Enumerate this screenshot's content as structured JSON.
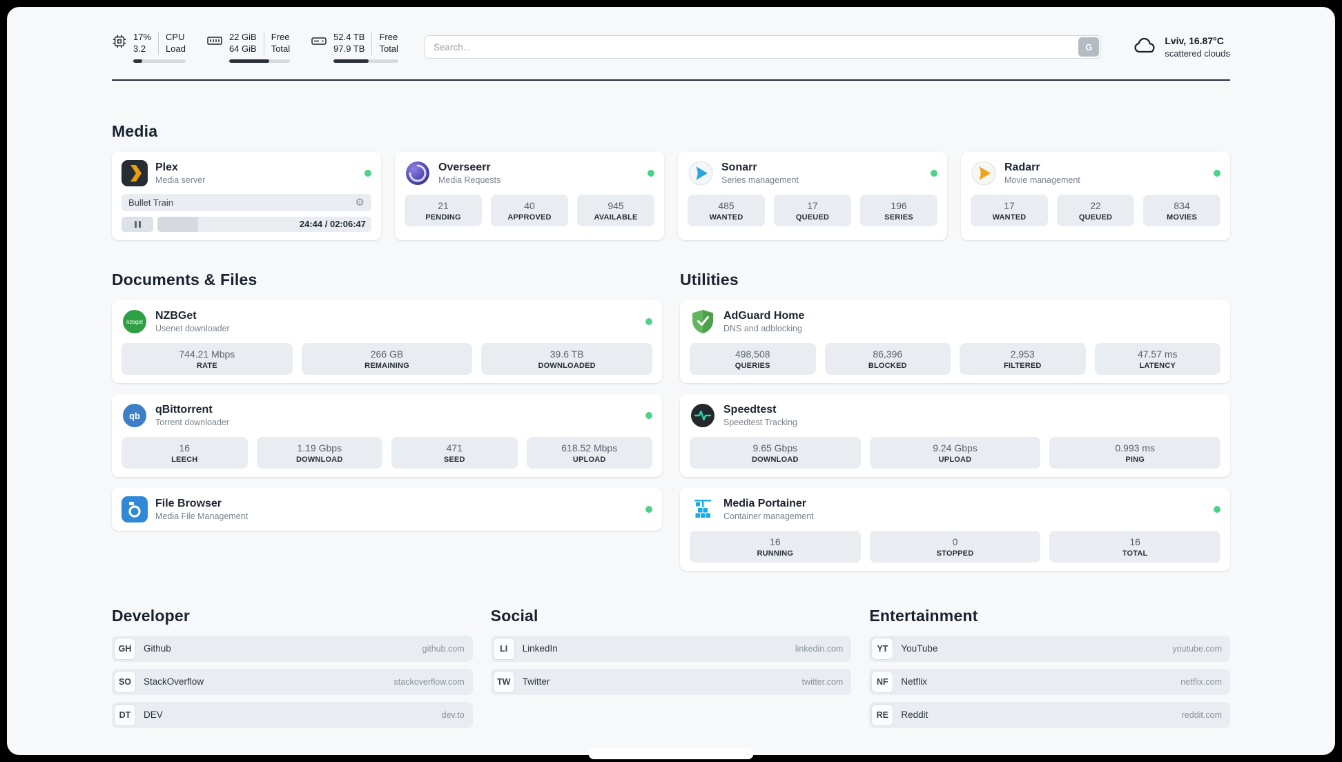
{
  "topbar": {
    "cpu": {
      "value_top": "17%",
      "value_bottom": "3.2",
      "label_top": "CPU",
      "label_bottom": "Load",
      "progress_percent": 17
    },
    "ram": {
      "value_top": "22 GiB",
      "value_bottom": "64 GiB",
      "label_top": "Free",
      "label_bottom": "Total",
      "progress_percent": 66
    },
    "disk": {
      "value_top": "52.4 TB",
      "value_bottom": "97.9 TB",
      "label_top": "Free",
      "label_bottom": "Total",
      "progress_percent": 54
    },
    "search": {
      "placeholder": "Search...",
      "engine_button": "G"
    },
    "weather": {
      "location": "Lviv, 16.87°C",
      "condition": "scattered clouds"
    }
  },
  "media_section": {
    "title": "Media",
    "plex": {
      "title": "Plex",
      "subtitle": "Media server",
      "now_playing": "Bullet Train",
      "time": "24:44 / 02:06:47",
      "progress_percent": 19
    },
    "overseerr": {
      "title": "Overseerr",
      "subtitle": "Media Requests",
      "stats": [
        {
          "value": "21",
          "label": "PENDING"
        },
        {
          "value": "40",
          "label": "APPROVED"
        },
        {
          "value": "945",
          "label": "AVAILABLE"
        }
      ]
    },
    "sonarr": {
      "title": "Sonarr",
      "subtitle": "Series management",
      "stats": [
        {
          "value": "485",
          "label": "WANTED"
        },
        {
          "value": "17",
          "label": "QUEUED"
        },
        {
          "value": "196",
          "label": "SERIES"
        }
      ]
    },
    "radarr": {
      "title": "Radarr",
      "subtitle": "Movie management",
      "stats": [
        {
          "value": "17",
          "label": "WANTED"
        },
        {
          "value": "22",
          "label": "QUEUED"
        },
        {
          "value": "834",
          "label": "MOVIES"
        }
      ]
    }
  },
  "documents_section": {
    "title": "Documents & Files",
    "nzbget": {
      "title": "NZBGet",
      "subtitle": "Usenet downloader",
      "stats": [
        {
          "value": "744.21 Mbps",
          "label": "RATE"
        },
        {
          "value": "266 GB",
          "label": "REMAINING"
        },
        {
          "value": "39.6 TB",
          "label": "DOWNLOADED"
        }
      ]
    },
    "qbittorrent": {
      "title": "qBittorrent",
      "subtitle": "Torrent downloader",
      "stats": [
        {
          "value": "16",
          "label": "LEECH"
        },
        {
          "value": "1.19 Gbps",
          "label": "DOWNLOAD"
        },
        {
          "value": "471",
          "label": "SEED"
        },
        {
          "value": "618.52 Mbps",
          "label": "UPLOAD"
        }
      ]
    },
    "filebrowser": {
      "title": "File Browser",
      "subtitle": "Media File Management"
    }
  },
  "utilities_section": {
    "title": "Utilities",
    "adguard": {
      "title": "AdGuard Home",
      "subtitle": "DNS and adblocking",
      "stats": [
        {
          "value": "498,508",
          "label": "QUERIES"
        },
        {
          "value": "86,396",
          "label": "BLOCKED"
        },
        {
          "value": "2,953",
          "label": "FILTERED"
        },
        {
          "value": "47.57 ms",
          "label": "LATENCY"
        }
      ]
    },
    "speedtest": {
      "title": "Speedtest",
      "subtitle": "Speedtest Tracking",
      "stats": [
        {
          "value": "9.65 Gbps",
          "label": "DOWNLOAD"
        },
        {
          "value": "9.24 Gbps",
          "label": "UPLOAD"
        },
        {
          "value": "0.993 ms",
          "label": "PING"
        }
      ]
    },
    "portainer": {
      "title": "Media Portainer",
      "subtitle": "Container management",
      "stats": [
        {
          "value": "16",
          "label": "RUNNING"
        },
        {
          "value": "0",
          "label": "STOPPED"
        },
        {
          "value": "16",
          "label": "TOTAL"
        }
      ]
    }
  },
  "bookmarks": {
    "developer": {
      "title": "Developer",
      "items": [
        {
          "abbr": "GH",
          "name": "Github",
          "url": "github.com"
        },
        {
          "abbr": "SO",
          "name": "StackOverflow",
          "url": "stackoverflow.com"
        },
        {
          "abbr": "DT",
          "name": "DEV",
          "url": "dev.to"
        }
      ]
    },
    "social": {
      "title": "Social",
      "items": [
        {
          "abbr": "LI",
          "name": "LinkedIn",
          "url": "linkedin.com"
        },
        {
          "abbr": "TW",
          "name": "Twitter",
          "url": "twitter.com"
        }
      ]
    },
    "entertainment": {
      "title": "Entertainment",
      "items": [
        {
          "abbr": "YT",
          "name": "YouTube",
          "url": "youtube.com"
        },
        {
          "abbr": "NF",
          "name": "Netflix",
          "url": "netflix.com"
        },
        {
          "abbr": "RE",
          "name": "Reddit",
          "url": "reddit.com"
        }
      ]
    }
  }
}
